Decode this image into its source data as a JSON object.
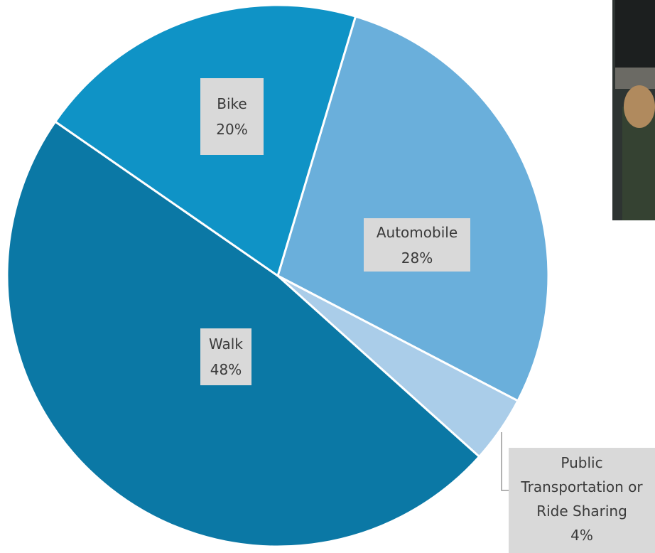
{
  "chart_data": {
    "type": "pie",
    "categories": [
      "Automobile",
      "Public Transportation or Ride Sharing",
      "Walk",
      "Bike"
    ],
    "values": [
      28,
      4,
      48,
      20
    ],
    "value_labels": [
      "28%",
      "4%",
      "48%",
      "20%"
    ],
    "colors": [
      "#6aafdb",
      "#aacde9",
      "#0b78a5",
      "#0f93c6"
    ]
  }
}
